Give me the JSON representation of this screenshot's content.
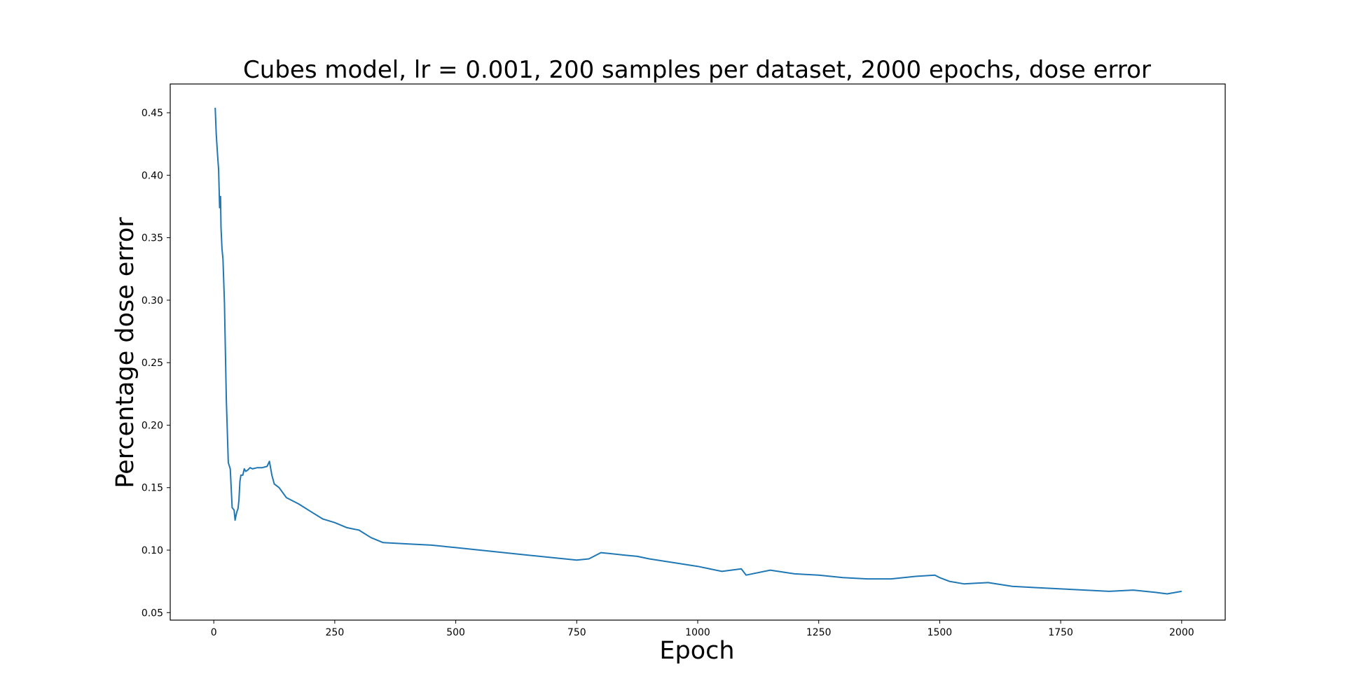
{
  "chart_data": {
    "type": "line",
    "title": "Cubes model, lr = 0.001, 200 samples per dataset, 2000 epochs, dose error",
    "xlabel": "Epoch",
    "ylabel": "Percentage dose error",
    "xlim": [
      -90,
      2090
    ],
    "ylim": [
      0.044,
      0.473
    ],
    "x_ticks": [
      0,
      250,
      500,
      750,
      1000,
      1250,
      1500,
      1750,
      2000
    ],
    "x_tick_labels": [
      "0",
      "250",
      "500",
      "750",
      "1000",
      "1250",
      "1500",
      "1750",
      "2000"
    ],
    "y_ticks": [
      0.05,
      0.1,
      0.15,
      0.2,
      0.25,
      0.3,
      0.35,
      0.4,
      0.45
    ],
    "y_tick_labels": [
      "0.05",
      "0.10",
      "0.15",
      "0.20",
      "0.25",
      "0.30",
      "0.35",
      "0.40",
      "0.45"
    ],
    "grid": false,
    "line_color": "#1f77b4",
    "series": [
      {
        "x": [
          3,
          5,
          7,
          10,
          12,
          14,
          15,
          17,
          19,
          22,
          26,
          30,
          34,
          38,
          42,
          44,
          46,
          48,
          50,
          52,
          54,
          56,
          60,
          63,
          66,
          70,
          75,
          80,
          90,
          100,
          110,
          115,
          120,
          125,
          135,
          150,
          175,
          200,
          225,
          250,
          275,
          300,
          325,
          350,
          400,
          450,
          500,
          550,
          600,
          650,
          700,
          750,
          775,
          800,
          825,
          850,
          875,
          900,
          950,
          1000,
          1050,
          1090,
          1100,
          1150,
          1200,
          1250,
          1300,
          1350,
          1400,
          1450,
          1490,
          1500,
          1520,
          1550,
          1600,
          1650,
          1700,
          1750,
          1800,
          1850,
          1900,
          1950,
          1970,
          2000
        ],
        "y": [
          0.454,
          0.434,
          0.421,
          0.404,
          0.374,
          0.383,
          0.358,
          0.341,
          0.333,
          0.298,
          0.22,
          0.17,
          0.165,
          0.134,
          0.132,
          0.124,
          0.128,
          0.131,
          0.133,
          0.14,
          0.155,
          0.16,
          0.16,
          0.165,
          0.163,
          0.164,
          0.166,
          0.165,
          0.166,
          0.166,
          0.167,
          0.171,
          0.16,
          0.153,
          0.15,
          0.142,
          0.137,
          0.131,
          0.125,
          0.122,
          0.118,
          0.116,
          0.11,
          0.106,
          0.105,
          0.104,
          0.102,
          0.1,
          0.098,
          0.096,
          0.094,
          0.092,
          0.093,
          0.098,
          0.097,
          0.096,
          0.095,
          0.093,
          0.09,
          0.087,
          0.083,
          0.085,
          0.08,
          0.084,
          0.081,
          0.08,
          0.078,
          0.077,
          0.077,
          0.079,
          0.08,
          0.078,
          0.075,
          0.073,
          0.074,
          0.071,
          0.07,
          0.069,
          0.068,
          0.067,
          0.068,
          0.066,
          0.065,
          0.067
        ]
      }
    ]
  }
}
